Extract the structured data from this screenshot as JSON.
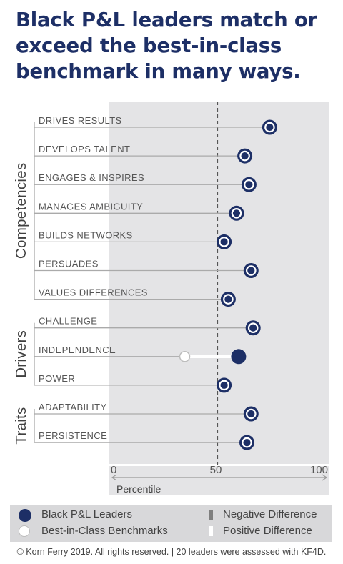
{
  "title": "Black P&L leaders match or exceed the best-in-class benchmark in many ways.",
  "colors": {
    "leader": "#1d2f66",
    "benchmark_fill": "#ffffff",
    "benchmark_stroke": "#bdbdbd",
    "plot_background": "#e4e4e6",
    "positive_difference": "#ffffff",
    "negative_difference": "#7f7f7f",
    "connector": "#aaaaaa"
  },
  "chart_data": {
    "type": "scatter",
    "title": "Black P&L leaders match or exceed the best-in-class benchmark in many ways.",
    "xlabel": "Percentile",
    "xlim": [
      0,
      100
    ],
    "xticks": [
      "0",
      "50",
      "100"
    ],
    "reference_line": 50,
    "groups": [
      {
        "name": "Competencies",
        "items": [
          {
            "label": "DRIVES RESULTS",
            "leader": 76
          },
          {
            "label": "DEVELOPS TALENT",
            "leader": 64
          },
          {
            "label": "ENGAGES & INSPIRES",
            "leader": 66
          },
          {
            "label": "MANAGES AMBIGUITY",
            "leader": 60
          },
          {
            "label": "BUILDS NETWORKS",
            "leader": 54
          },
          {
            "label": "PERSUADES",
            "leader": 67
          },
          {
            "label": "VALUES DIFFERENCES",
            "leader": 56
          }
        ]
      },
      {
        "name": "Drivers",
        "items": [
          {
            "label": "CHALLENGE",
            "leader": 68
          },
          {
            "label": "INDEPENDENCE",
            "leader": 61,
            "benchmark": 35
          },
          {
            "label": "POWER",
            "leader": 54
          }
        ]
      },
      {
        "name": "Traits",
        "items": [
          {
            "label": "ADAPTABILITY",
            "leader": 67
          },
          {
            "label": "PERSISTENCE",
            "leader": 65
          }
        ]
      }
    ]
  },
  "legend": {
    "leader": "Black P&L Leaders",
    "benchmark": "Best-in-Class Benchmarks",
    "negative": "Negative Difference",
    "positive": "Positive Difference"
  },
  "footer": "© Korn Ferry 2019. All rights reserved. | 20 leaders were assessed with KF4D."
}
